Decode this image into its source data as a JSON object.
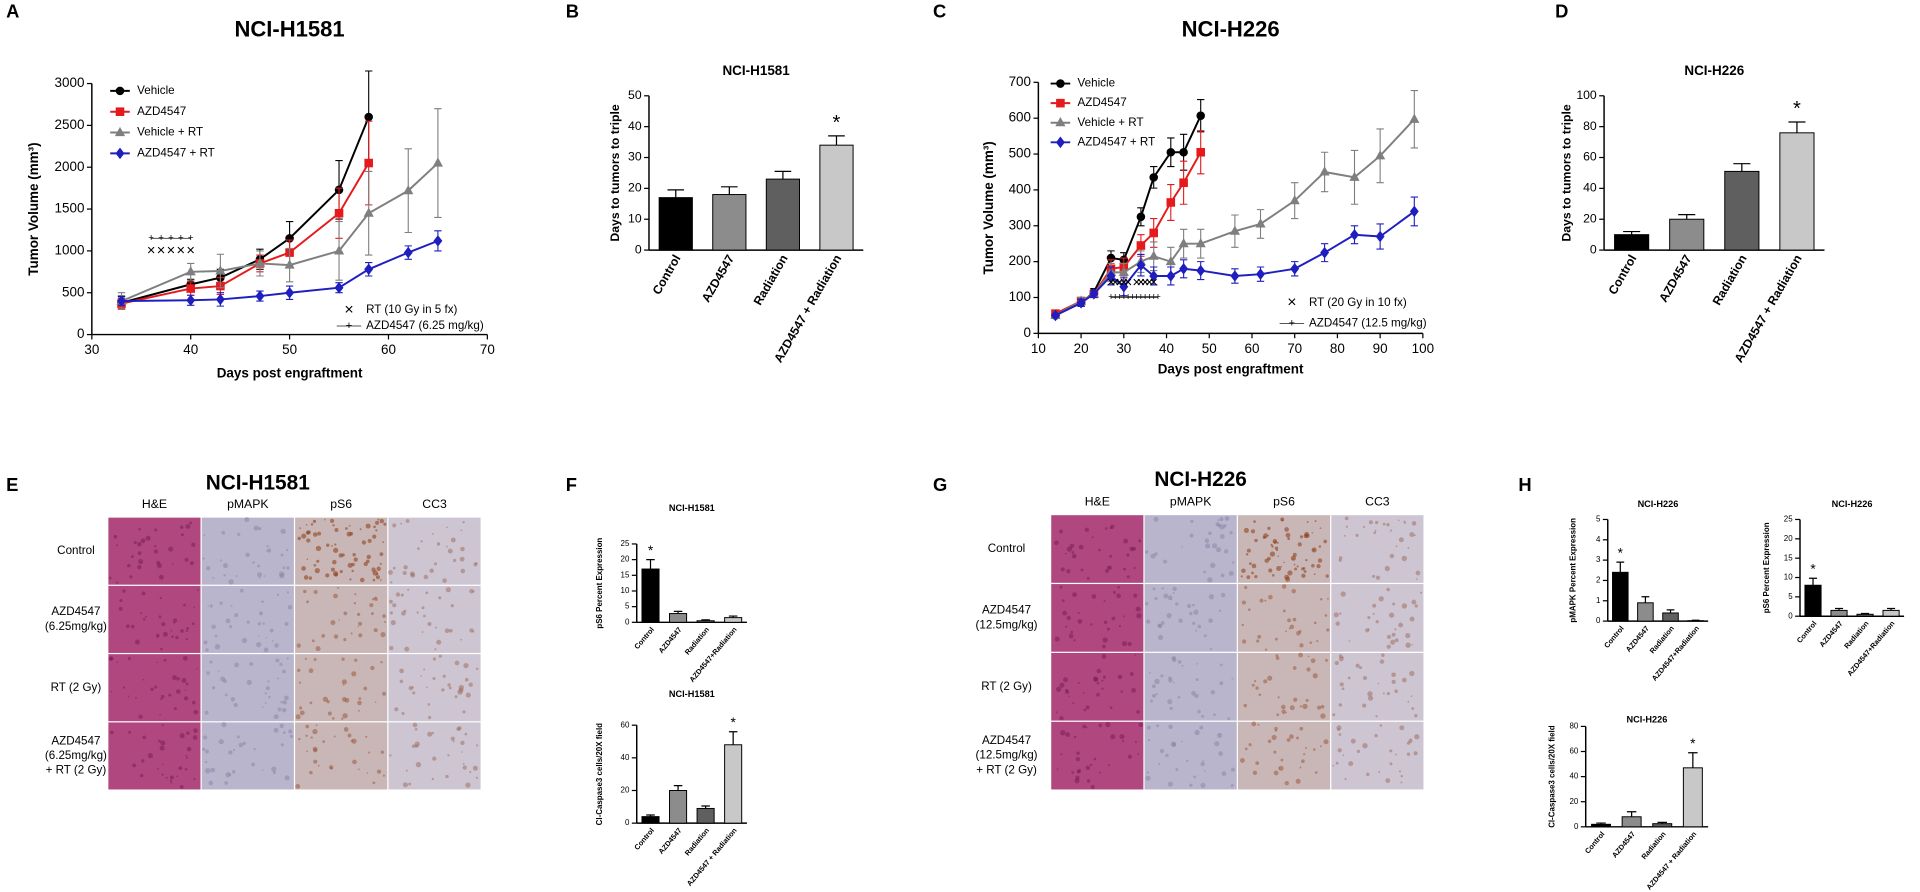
{
  "panels": [
    "A",
    "B",
    "C",
    "D",
    "E",
    "F",
    "G",
    "H"
  ],
  "histology": [
    {
      "title": "NCI-H1581",
      "columns": [
        "H&E",
        "pMAPK",
        "pS6",
        "CC3"
      ],
      "rows": [
        [
          "Control"
        ],
        [
          "AZD4547",
          "(6.25mg/kg)"
        ],
        [
          "RT (2 Gy)"
        ],
        [
          "AZD4547",
          "(6.25mg/kg)",
          "+ RT (2 Gy)"
        ]
      ]
    },
    {
      "title": "NCI-H226",
      "columns": [
        "H&E",
        "pMAPK",
        "pS6",
        "CC3"
      ],
      "rows": [
        [
          "Control"
        ],
        [
          "AZD4547",
          "(12.5mg/kg)"
        ],
        [
          "RT (2 Gy)"
        ],
        [
          "AZD4547",
          "(12.5mg/kg)",
          "+ RT (2 Gy)"
        ]
      ]
    }
  ],
  "chart_data": [
    {
      "type": "line",
      "title": "NCI-H1581",
      "x_label": "Days post engraftment",
      "y_label": "Tumor Volume (mm³)",
      "xlim": [
        30,
        70
      ],
      "xticks": [
        30,
        40,
        50,
        60,
        70
      ],
      "ylim": [
        0,
        3000
      ],
      "yticks": [
        0,
        500,
        1000,
        1500,
        2000,
        2500,
        3000
      ],
      "series": [
        {
          "name": "Vehicle",
          "color": "#000000",
          "marker": "circle",
          "x": [
            33,
            40,
            43,
            47,
            50,
            55,
            58
          ],
          "values": [
            380,
            600,
            680,
            900,
            1150,
            1730,
            2600
          ],
          "errors": [
            80,
            60,
            100,
            120,
            200,
            350,
            550
          ]
        },
        {
          "name": "AZD4547",
          "color": "#e41a1c",
          "marker": "square",
          "x": [
            33,
            40,
            43,
            47,
            50,
            55,
            58
          ],
          "values": [
            370,
            550,
            580,
            850,
            980,
            1450,
            2050
          ],
          "errors": [
            60,
            80,
            100,
            100,
            150,
            300,
            500
          ]
        },
        {
          "name": "Vehicle + RT",
          "color": "#7f7f7f",
          "marker": "triangle",
          "x": [
            33,
            40,
            43,
            47,
            50,
            55,
            58,
            62,
            65
          ],
          "values": [
            400,
            750,
            760,
            850,
            830,
            1000,
            1450,
            1720,
            2050
          ],
          "errors": [
            100,
            100,
            200,
            150,
            200,
            350,
            500,
            500,
            650
          ]
        },
        {
          "name": "AZD4547 + RT",
          "color": "#1f1fbf",
          "marker": "diamond",
          "x": [
            33,
            40,
            43,
            47,
            50,
            55,
            58,
            62,
            65
          ],
          "values": [
            400,
            410,
            420,
            460,
            500,
            560,
            780,
            980,
            1120
          ],
          "errors": [
            50,
            60,
            80,
            60,
            80,
            60,
            80,
            80,
            120
          ]
        }
      ],
      "treatments": [
        {
          "symbol": "×",
          "label": "RT (10 Gy in 5 fx)",
          "days": [
            36,
            37,
            38,
            39,
            40
          ],
          "level": 1000
        },
        {
          "symbol": "+",
          "label": "AZD4547 (6.25 mg/kg)",
          "days": [
            36,
            37,
            38,
            39,
            40
          ],
          "level": 1150
        }
      ]
    },
    {
      "type": "bar",
      "title": "NCI-H1581",
      "y_label": "Days to tumors to triple",
      "categories": [
        "Control",
        "AZD4547",
        "Radiation",
        "AZD4547 + Radiation"
      ],
      "values": [
        17,
        18,
        23,
        34
      ],
      "errors": [
        2.5,
        2.5,
        2.5,
        3
      ],
      "colors": [
        "#000000",
        "#8c8c8c",
        "#5f5f5f",
        "#c8c8c8"
      ],
      "ylim": [
        0,
        50
      ],
      "yticks": [
        0,
        10,
        20,
        30,
        40,
        50
      ],
      "annotations": [
        {
          "text": "*",
          "category": "AZD4547 + Radiation"
        }
      ]
    },
    {
      "type": "line",
      "title": "NCI-H226",
      "x_label": "Days post engraftment",
      "y_label": "Tumor Volume (mm³)",
      "xlim": [
        10,
        100
      ],
      "xticks": [
        10,
        20,
        30,
        40,
        50,
        60,
        70,
        80,
        90,
        100
      ],
      "ylim": [
        0,
        700
      ],
      "yticks": [
        0,
        100,
        200,
        300,
        400,
        500,
        600,
        700
      ],
      "series": [
        {
          "name": "Vehicle",
          "color": "#000000",
          "marker": "circle",
          "x": [
            14,
            20,
            23,
            27,
            30,
            34,
            37,
            41,
            44,
            48
          ],
          "values": [
            50,
            85,
            115,
            210,
            205,
            325,
            435,
            505,
            505,
            607
          ],
          "errors": [
            5,
            10,
            10,
            20,
            20,
            25,
            30,
            40,
            50,
            45
          ]
        },
        {
          "name": "AZD4547",
          "color": "#e41a1c",
          "marker": "square",
          "x": [
            14,
            20,
            23,
            27,
            30,
            34,
            37,
            41,
            44,
            48
          ],
          "values": [
            55,
            90,
            110,
            180,
            185,
            245,
            280,
            365,
            420,
            505
          ],
          "errors": [
            5,
            10,
            10,
            25,
            25,
            30,
            40,
            50,
            60,
            60
          ]
        },
        {
          "name": "Vehicle + RT",
          "color": "#7f7f7f",
          "marker": "triangle",
          "x": [
            14,
            20,
            23,
            27,
            30,
            34,
            37,
            41,
            44,
            48,
            56,
            62,
            70,
            77,
            84,
            90,
            98
          ],
          "values": [
            50,
            90,
            110,
            170,
            170,
            200,
            215,
            200,
            250,
            250,
            285,
            305,
            370,
            450,
            435,
            495,
            597
          ],
          "errors": [
            5,
            10,
            10,
            25,
            25,
            30,
            40,
            40,
            40,
            40,
            45,
            40,
            50,
            55,
            75,
            75,
            80
          ]
        },
        {
          "name": "AZD4547 + RT",
          "color": "#1f1fbf",
          "marker": "diamond",
          "x": [
            14,
            20,
            23,
            27,
            30,
            34,
            37,
            41,
            44,
            48,
            56,
            62,
            70,
            77,
            84,
            90,
            98
          ],
          "values": [
            50,
            85,
            110,
            160,
            130,
            190,
            160,
            160,
            180,
            175,
            160,
            165,
            180,
            225,
            275,
            270,
            340
          ],
          "errors": [
            5,
            10,
            10,
            25,
            25,
            30,
            25,
            25,
            25,
            25,
            20,
            20,
            20,
            25,
            25,
            35,
            40
          ]
        }
      ],
      "treatments": [
        {
          "symbol": "×",
          "label": "RT (20 Gy in 10 fx)",
          "days": [
            27,
            28,
            29,
            30,
            31,
            33,
            34,
            35,
            36,
            37
          ],
          "level": 140
        },
        {
          "symbol": "+",
          "label": "AZD4547 (12.5 mg/kg)",
          "days": [
            27,
            28,
            29,
            30,
            31,
            32,
            33,
            34,
            35,
            36,
            37,
            38
          ],
          "level": 100
        }
      ]
    },
    {
      "type": "bar",
      "title": "NCI-H226",
      "y_label": "Days to tumors to triple",
      "categories": [
        "Control",
        "AZD4547",
        "Radiation",
        "AZD4547 + Radiation"
      ],
      "values": [
        10,
        20,
        51,
        76
      ],
      "errors": [
        2,
        3,
        5,
        7
      ],
      "colors": [
        "#000000",
        "#8c8c8c",
        "#5f5f5f",
        "#c8c8c8"
      ],
      "ylim": [
        0,
        100
      ],
      "yticks": [
        0,
        20,
        40,
        60,
        80,
        100
      ],
      "annotations": [
        {
          "text": "*",
          "category": "AZD4547 + Radiation"
        }
      ]
    },
    {
      "type": "bar",
      "title": "NCI-H1581",
      "y_label": "pS6 Percent Expression",
      "categories": [
        "Control",
        "AZD4547",
        "Radiation",
        "AZD4547+Radiation"
      ],
      "values": [
        17,
        2.8,
        0.5,
        1.5
      ],
      "errors": [
        3,
        0.7,
        0.3,
        0.5
      ],
      "colors": [
        "#000000",
        "#8c8c8c",
        "#5f5f5f",
        "#c8c8c8"
      ],
      "ylim": [
        0,
        25
      ],
      "yticks": [
        0,
        5,
        10,
        15,
        20,
        25
      ],
      "annotations": [
        {
          "text": "*",
          "category": "Control"
        }
      ]
    },
    {
      "type": "bar",
      "title": "NCI-H1581",
      "y_label": "Cl-Caspase3 cells/20X field",
      "categories": [
        "Control",
        "AZD4547",
        "Radiation",
        "AZD4547 + Radiation"
      ],
      "values": [
        4,
        20,
        9,
        48
      ],
      "errors": [
        1,
        3,
        1.5,
        8
      ],
      "colors": [
        "#000000",
        "#8c8c8c",
        "#5f5f5f",
        "#c8c8c8"
      ],
      "ylim": [
        0,
        60
      ],
      "yticks": [
        0,
        20,
        40,
        60
      ],
      "annotations": [
        {
          "text": "*",
          "category": "AZD4547 + Radiation"
        }
      ]
    },
    {
      "type": "bar",
      "title": "NCI-H226",
      "y_label": "pMAPK Percent Expression",
      "categories": [
        "Control",
        "AZD4547",
        "Radiation",
        "AZD4547+Radiation"
      ],
      "values": [
        2.4,
        0.9,
        0.4,
        0.02
      ],
      "errors": [
        0.5,
        0.3,
        0.15,
        0.02
      ],
      "colors": [
        "#000000",
        "#8c8c8c",
        "#5f5f5f",
        "#c8c8c8"
      ],
      "ylim": [
        0,
        5
      ],
      "yticks": [
        0,
        1,
        2,
        3,
        4,
        5
      ],
      "annotations": [
        {
          "text": "*",
          "category": "Control"
        }
      ]
    },
    {
      "type": "bar",
      "title": "NCI-H226",
      "y_label": "pS6 Percent Expression",
      "categories": [
        "Control",
        "AZD4547",
        "Radiation",
        "AZD4547+Radiation"
      ],
      "values": [
        8,
        1.5,
        0.5,
        1.5
      ],
      "errors": [
        1.8,
        0.5,
        0.2,
        0.5
      ],
      "colors": [
        "#000000",
        "#8c8c8c",
        "#5f5f5f",
        "#c8c8c8"
      ],
      "ylim": [
        0,
        25
      ],
      "yticks": [
        0,
        5,
        10,
        15,
        20,
        25
      ],
      "annotations": [
        {
          "text": "*",
          "category": "Control"
        }
      ]
    },
    {
      "type": "bar",
      "title": "NCI-H226",
      "y_label": "Cl-Caspase3 cells/20X field",
      "categories": [
        "Control",
        "AZD4547",
        "Radiation",
        "AZD4547 + Radiation"
      ],
      "values": [
        2,
        8,
        2.5,
        47
      ],
      "errors": [
        1,
        4,
        1,
        12
      ],
      "colors": [
        "#000000",
        "#8c8c8c",
        "#5f5f5f",
        "#c8c8c8"
      ],
      "ylim": [
        0,
        80
      ],
      "yticks": [
        0,
        20,
        40,
        60,
        80
      ],
      "annotations": [
        {
          "text": "*",
          "category": "AZD4547 + Radiation"
        }
      ]
    }
  ]
}
